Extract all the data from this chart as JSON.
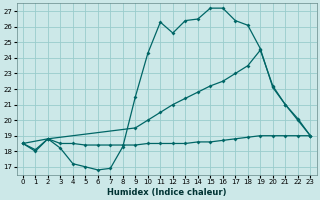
{
  "xlabel": "Humidex (Indice chaleur)",
  "bg_color": "#cce8e8",
  "grid_color": "#99cccc",
  "line_color": "#006666",
  "xlim": [
    -0.5,
    23.5
  ],
  "ylim": [
    16.5,
    27.5
  ],
  "xticks": [
    0,
    1,
    2,
    3,
    4,
    5,
    6,
    7,
    8,
    9,
    10,
    11,
    12,
    13,
    14,
    15,
    16,
    17,
    18,
    19,
    20,
    21,
    22,
    23
  ],
  "yticks": [
    17,
    18,
    19,
    20,
    21,
    22,
    23,
    24,
    25,
    26,
    27
  ],
  "line1_x": [
    0,
    1,
    2,
    3,
    4,
    5,
    6,
    7,
    8,
    9,
    10,
    11,
    12,
    13,
    14,
    15,
    16,
    17,
    18,
    19,
    20,
    21,
    22,
    23
  ],
  "line1_y": [
    18.5,
    18.0,
    18.8,
    18.2,
    17.2,
    17.0,
    16.8,
    16.9,
    18.3,
    21.5,
    24.3,
    26.3,
    25.6,
    26.4,
    26.5,
    27.2,
    27.2,
    26.4,
    26.1,
    24.6,
    22.1,
    21.0,
    20.0,
    19.0
  ],
  "line2_x": [
    0,
    2,
    9,
    10,
    11,
    12,
    13,
    14,
    15,
    16,
    17,
    18,
    19,
    20,
    21,
    22,
    23
  ],
  "line2_y": [
    18.5,
    18.8,
    19.5,
    20.0,
    20.5,
    21.0,
    21.4,
    21.8,
    22.2,
    22.5,
    23.0,
    23.5,
    24.5,
    22.2,
    21.0,
    20.1,
    19.0
  ],
  "line3_x": [
    0,
    1,
    2,
    3,
    4,
    5,
    6,
    7,
    8,
    9,
    10,
    11,
    12,
    13,
    14,
    15,
    16,
    17,
    18,
    19,
    20,
    21,
    22,
    23
  ],
  "line3_y": [
    18.5,
    18.1,
    18.8,
    18.5,
    18.5,
    18.4,
    18.4,
    18.4,
    18.4,
    18.4,
    18.5,
    18.5,
    18.5,
    18.5,
    18.6,
    18.6,
    18.7,
    18.8,
    18.9,
    19.0,
    19.0,
    19.0,
    19.0,
    19.0
  ]
}
